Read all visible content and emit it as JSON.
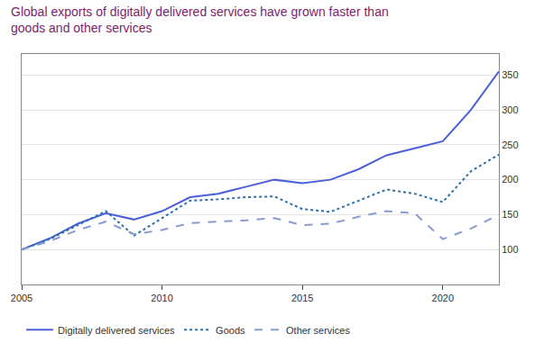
{
  "chart_data": {
    "type": "line",
    "title": "Global exports of digitally delivered services have grown faster than goods and other services",
    "x": [
      2005,
      2006,
      2007,
      2008,
      2009,
      2010,
      2011,
      2012,
      2013,
      2014,
      2015,
      2016,
      2017,
      2018,
      2019,
      2020,
      2021,
      2022
    ],
    "series": [
      {
        "name": "Digitally delivered services",
        "color": "#4a5fd8",
        "line_style": "solid",
        "values": [
          100,
          116,
          137,
          152,
          143,
          155,
          175,
          180,
          190,
          200,
          195,
          200,
          215,
          235,
          245,
          255,
          300,
          355
        ]
      },
      {
        "name": "Goods",
        "color": "#2a6fb0",
        "line_style": "dot",
        "values": [
          100,
          115,
          135,
          155,
          120,
          145,
          170,
          172,
          175,
          176,
          158,
          154,
          170,
          186,
          180,
          168,
          212,
          236
        ]
      },
      {
        "name": "Other services",
        "color": "#8a9ad0",
        "line_style": "dash",
        "values": [
          100,
          112,
          128,
          140,
          122,
          128,
          138,
          140,
          142,
          145,
          135,
          137,
          147,
          155,
          152,
          115,
          130,
          150
        ]
      }
    ],
    "xlim": [
      2005,
      2022
    ],
    "xticks": [
      2005,
      2010,
      2015,
      2020
    ],
    "ylim": [
      50,
      380
    ],
    "yticks": [
      100,
      150,
      200,
      250,
      300,
      350
    ],
    "grid": true,
    "legend": "bottom"
  }
}
